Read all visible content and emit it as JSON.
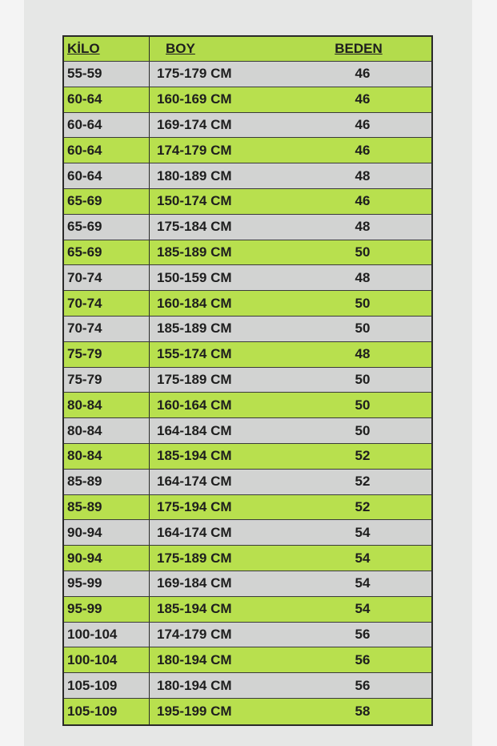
{
  "colors": {
    "green_row": "#b8e04e",
    "gray_row": "#d2d3d2",
    "header": "#b3dc4c"
  },
  "headers": {
    "kilo": "KİLO",
    "boy": "BOY",
    "beden": "BEDEN"
  },
  "rows": [
    {
      "kilo": "55-59",
      "boy": "175-179 CM",
      "beden": "46"
    },
    {
      "kilo": "60-64",
      "boy": "160-169 CM",
      "beden": "46"
    },
    {
      "kilo": "60-64",
      "boy": "169-174 CM",
      "beden": "46"
    },
    {
      "kilo": "60-64",
      "boy": "174-179 CM",
      "beden": "46"
    },
    {
      "kilo": "60-64",
      "boy": "180-189 CM",
      "beden": "48"
    },
    {
      "kilo": "65-69",
      "boy": "150-174 CM",
      "beden": "46"
    },
    {
      "kilo": "65-69",
      "boy": "175-184 CM",
      "beden": "48"
    },
    {
      "kilo": "65-69",
      "boy": "185-189 CM",
      "beden": "50"
    },
    {
      "kilo": "70-74",
      "boy": "150-159 CM",
      "beden": "48"
    },
    {
      "kilo": "70-74",
      "boy": "160-184 CM",
      "beden": "50"
    },
    {
      "kilo": "70-74",
      "boy": "185-189 CM",
      "beden": "50"
    },
    {
      "kilo": "75-79",
      "boy": "155-174 CM",
      "beden": "48"
    },
    {
      "kilo": "75-79",
      "boy": "175-189 CM",
      "beden": "50"
    },
    {
      "kilo": "80-84",
      "boy": "160-164 CM",
      "beden": "50"
    },
    {
      "kilo": "80-84",
      "boy": "164-184 CM",
      "beden": "50"
    },
    {
      "kilo": "80-84",
      "boy": "185-194 CM",
      "beden": "52"
    },
    {
      "kilo": "85-89",
      "boy": "164-174 CM",
      "beden": "52"
    },
    {
      "kilo": "85-89",
      "boy": "175-194 CM",
      "beden": "52"
    },
    {
      "kilo": "90-94",
      "boy": "164-174 CM",
      "beden": "54"
    },
    {
      "kilo": "90-94",
      "boy": "175-189 CM",
      "beden": "54"
    },
    {
      "kilo": "95-99",
      "boy": "169-184 CM",
      "beden": "54"
    },
    {
      "kilo": "95-99",
      "boy": "185-194 CM",
      "beden": "54"
    },
    {
      "kilo": "100-104",
      "boy": "174-179 CM",
      "beden": "56"
    },
    {
      "kilo": "100-104",
      "boy": "180-194 CM",
      "beden": "56"
    },
    {
      "kilo": "105-109",
      "boy": "180-194 CM",
      "beden": "56"
    },
    {
      "kilo": "105-109",
      "boy": "195-199 CM",
      "beden": "58"
    }
  ]
}
